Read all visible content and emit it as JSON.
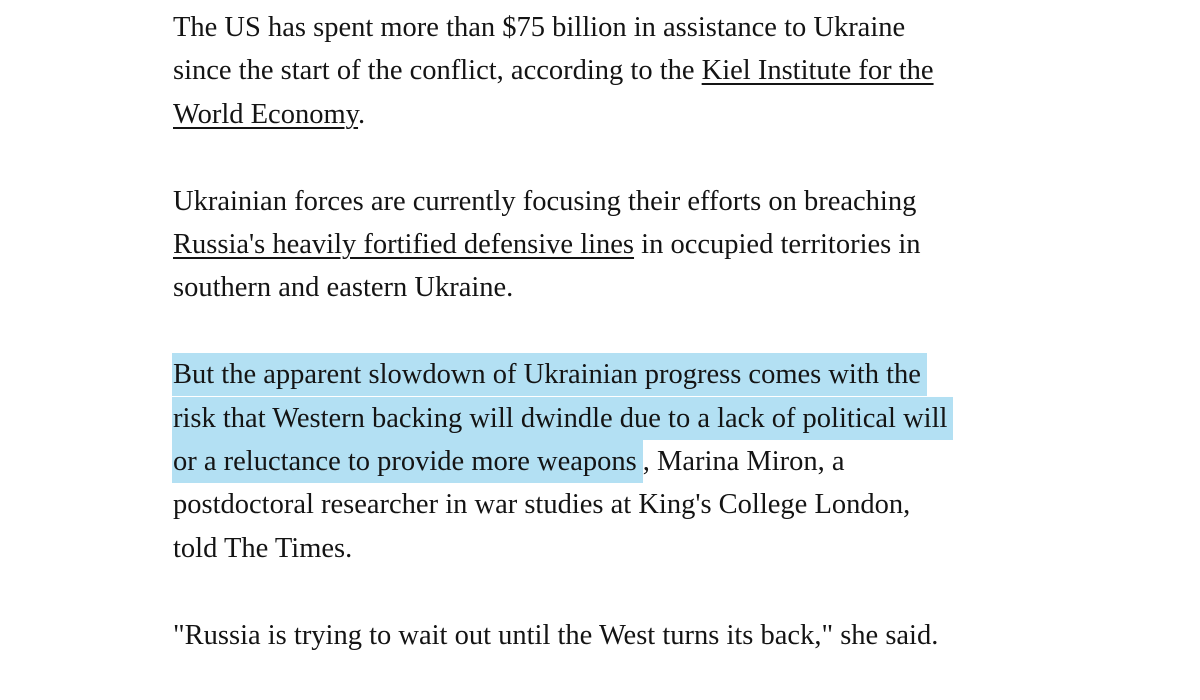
{
  "article": {
    "p1": {
      "l1": "The US has spent more than $75 billion in assistance to Ukraine",
      "l2": "since the start of the conflict, according to the ",
      "link_a": "Kiel Institute for the",
      "link_b": "World Economy",
      "end": "."
    },
    "p2": {
      "l1": "Ukrainian forces are currently focusing their efforts on breaching",
      "link": "Russia's heavily fortified defensive lines",
      "l2": " in occupied territories in",
      "l3": "southern and eastern Ukraine."
    },
    "p3": {
      "hl1": "But the apparent slowdown of Ukrainian progress comes with the",
      "hl2": "risk that Western backing will dwindle due to a lack of political will",
      "hl3": "or a reluctance to provide more weapons",
      "l3": ", Marina Miron, a",
      "l4": "postdoctoral researcher in war studies at King's College London,",
      "l5": "told The Times."
    },
    "p4": {
      "l1": "\"Russia is trying to wait out until the West turns its back,\" she said."
    },
    "highlight_color": "#b3e0f3"
  }
}
